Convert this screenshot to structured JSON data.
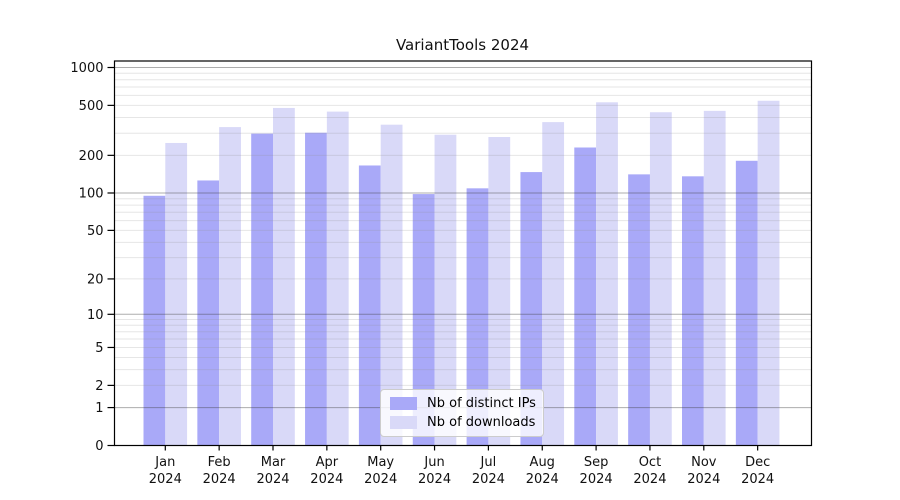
{
  "chart_data": {
    "type": "bar",
    "title": "VariantTools 2024",
    "categories": [
      "Jan 2024",
      "Feb 2024",
      "Mar 2024",
      "Apr 2024",
      "May 2024",
      "Jun 2024",
      "Jul 2024",
      "Aug 2024",
      "Sep 2024",
      "Oct 2024",
      "Nov 2024",
      "Dec 2024"
    ],
    "series": [
      {
        "name": "Nb of distinct IPs",
        "color": "#a9a9f8",
        "values": [
          95,
          126,
          298,
          303,
          166,
          98,
          109,
          147,
          231,
          141,
          136,
          181
        ]
      },
      {
        "name": "Nb of downloads",
        "color": "#d9d9f8",
        "values": [
          251,
          336,
          477,
          446,
          351,
          292,
          280,
          368,
          529,
          441,
          452,
          544
        ]
      }
    ],
    "xlabel": "",
    "ylabel": "",
    "yscale": "log1p",
    "ylim": [
      0,
      1000
    ],
    "yticks": [
      0,
      1,
      2,
      5,
      10,
      20,
      50,
      100,
      200,
      500,
      1000
    ],
    "grid": {
      "major_ticks": [
        1,
        10,
        100,
        1000
      ],
      "minor_mantissas": [
        2,
        3,
        4,
        5,
        6,
        7,
        8,
        9
      ],
      "major_color": "#adadad",
      "minor_color": "#e6e6e6"
    },
    "legend_position": "lower center",
    "axis_color": "#000000",
    "tick_label_color": "#111111"
  }
}
